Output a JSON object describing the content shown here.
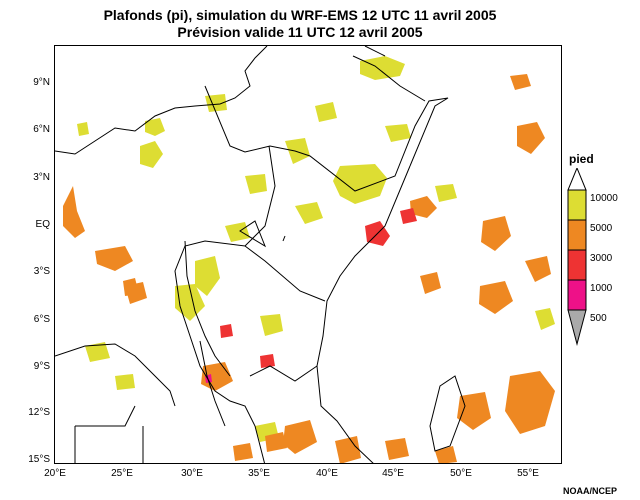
{
  "title_line1": "Plafonds (pi), simulation du WRF-EMS 12 UTC 11 avril 2005",
  "title_line2": "Prévision valide 11 UTC 12 avril 2005",
  "lat_labels": [
    "9°N",
    "6°N",
    "3°N",
    "EQ",
    "3°S",
    "6°S",
    "9°S",
    "12°S",
    "15°S"
  ],
  "lon_labels": [
    "20°E",
    "25°E",
    "30°E",
    "35°E",
    "40°E",
    "45°E",
    "50°E",
    "55°E"
  ],
  "legend": {
    "title": "pied",
    "levels": [
      {
        "label": "10000",
        "color": "#dddd33"
      },
      {
        "label": "5000",
        "color": "#ee8822"
      },
      {
        "label": "3000",
        "color": "#ee3333"
      },
      {
        "label": "1000",
        "color": "#ee1188"
      },
      {
        "label": "500",
        "color": "#aaaaaa"
      }
    ]
  },
  "credit": "NOAA/NCEP"
}
